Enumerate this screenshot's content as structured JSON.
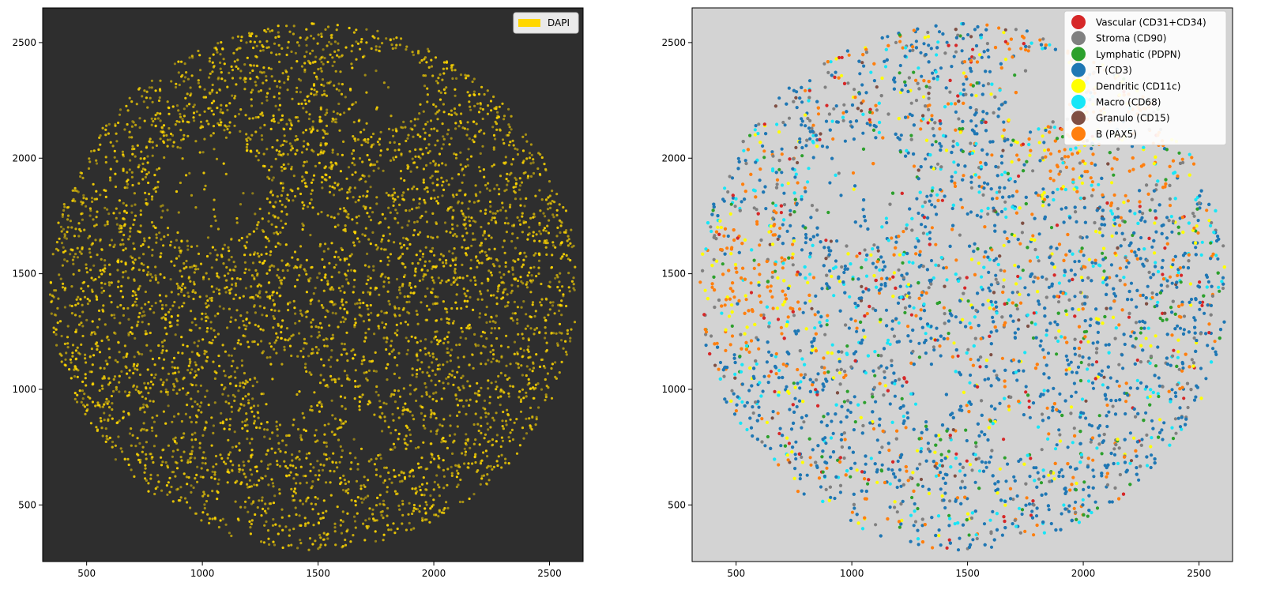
{
  "chart_data": [
    {
      "type": "scatter",
      "title": "",
      "xlabel": "",
      "ylabel": "",
      "xlim": [
        310,
        2645
      ],
      "ylim": [
        255,
        2650
      ],
      "xticks": [
        500,
        1000,
        1500,
        2000,
        2500
      ],
      "yticks": [
        500,
        1000,
        1500,
        2000,
        2500
      ],
      "xtick_labels": [
        "500",
        "1000",
        "1500",
        "2000",
        "2500"
      ],
      "ytick_labels": [
        "500",
        "1000",
        "1500",
        "2000",
        "2500"
      ],
      "background": "#2e2e2e",
      "grid": false,
      "legend_position": "top-right",
      "series": [
        {
          "name": "DAPI",
          "color": "#ffd700",
          "marker": "patch"
        }
      ],
      "tissue_region": {
        "center": [
          1480,
          1445
        ],
        "radius": 1140
      }
    },
    {
      "type": "scatter",
      "title": "",
      "xlabel": "",
      "ylabel": "",
      "xlim": [
        310,
        2645
      ],
      "ylim": [
        255,
        2650
      ],
      "xticks": [
        500,
        1000,
        1500,
        2000,
        2500
      ],
      "yticks": [
        500,
        1000,
        1500,
        2000,
        2500
      ],
      "xtick_labels": [
        "500",
        "1000",
        "1500",
        "2000",
        "2500"
      ],
      "ytick_labels": [
        "500",
        "1000",
        "1500",
        "2000",
        "2500"
      ],
      "background": "#d3d3d3",
      "grid": false,
      "legend_position": "top-right",
      "series": [
        {
          "name": "Vascular (CD31+CD34)",
          "color": "#d62728"
        },
        {
          "name": "Stroma (CD90)",
          "color": "#808080"
        },
        {
          "name": "Lymphatic (PDPN)",
          "color": "#2ca02c"
        },
        {
          "name": "T (CD3)",
          "color": "#1f77b4"
        },
        {
          "name": "Dendritic (CD11c)",
          "color": "#ffff00"
        },
        {
          "name": "Macro (CD68)",
          "color": "#17e6f7"
        },
        {
          "name": "Granulo (CD15)",
          "color": "#7f4f43"
        },
        {
          "name": "B (PAX5)",
          "color": "#ff7f0e"
        }
      ],
      "tissue_region": {
        "center": [
          1480,
          1445
        ],
        "radius": 1140
      }
    }
  ]
}
